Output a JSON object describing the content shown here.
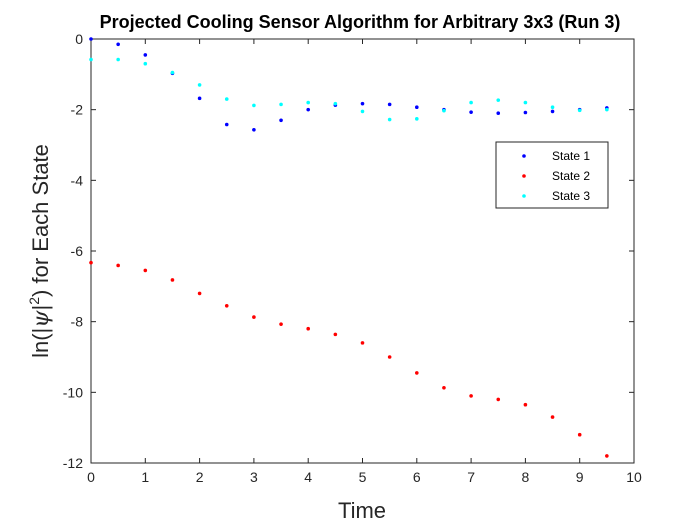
{
  "chart_data": {
    "type": "scatter",
    "title": "Projected Cooling Sensor Algorithm for Arbitrary 3x3 (Run 3)",
    "xlabel": "Time",
    "ylabel": "ln(|ψ|²) for Each State",
    "ylabel_parts": {
      "pre": "ln(|",
      "psi": "ψ",
      "mid": "|",
      "sup": "2",
      "post": ") for Each State"
    },
    "xlim": [
      0,
      10
    ],
    "ylim": [
      -12,
      0
    ],
    "x_ticks": [
      0,
      1,
      2,
      3,
      4,
      5,
      6,
      7,
      8,
      9,
      10
    ],
    "y_ticks": [
      0,
      -2,
      -4,
      -6,
      -8,
      -10,
      -12
    ],
    "grid": false,
    "legend_position": "right",
    "x": [
      0,
      0.5,
      1,
      1.5,
      2,
      2.5,
      3,
      3.5,
      4,
      4.5,
      5,
      5.5,
      6,
      6.5,
      7,
      7.5,
      8,
      8.5,
      9,
      9.5
    ],
    "series": [
      {
        "name": "State 1",
        "color": "#0000ff",
        "values": [
          0.0,
          -0.15,
          -0.45,
          -0.97,
          -1.68,
          -2.42,
          -2.57,
          -2.3,
          -2.0,
          -1.87,
          -1.83,
          -1.85,
          -1.93,
          -2.0,
          -2.07,
          -2.1,
          -2.08,
          -2.05,
          -2.0,
          -1.95
        ]
      },
      {
        "name": "State 2",
        "color": "#ff0000",
        "values": [
          -6.33,
          -6.41,
          -6.55,
          -6.82,
          -7.2,
          -7.55,
          -7.87,
          -8.07,
          -8.2,
          -8.36,
          -8.6,
          -9.0,
          -9.45,
          -9.87,
          -10.1,
          -10.2,
          -10.35,
          -10.7,
          -11.2,
          -11.8
        ]
      },
      {
        "name": "State 3",
        "color": "#00ffff",
        "values": [
          -0.58,
          -0.58,
          -0.7,
          -0.95,
          -1.3,
          -1.7,
          -1.88,
          -1.85,
          -1.8,
          -1.83,
          -2.05,
          -2.28,
          -2.26,
          -2.03,
          -1.8,
          -1.73,
          -1.8,
          -1.93,
          -2.02,
          -2.0
        ]
      }
    ]
  }
}
